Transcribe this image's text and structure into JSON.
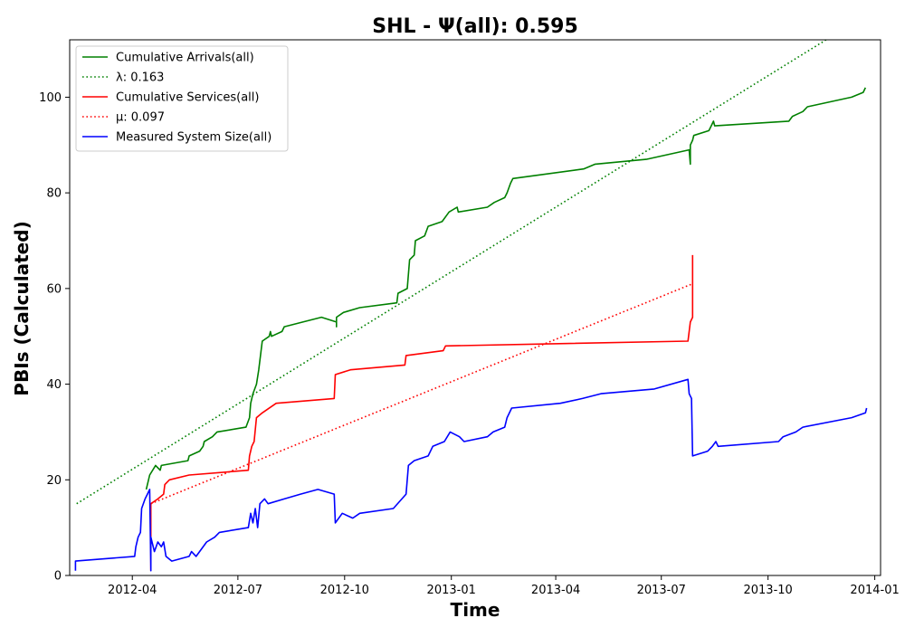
{
  "chart_data": {
    "type": "line",
    "title": "SHL -  Ψ(all): 0.595",
    "xlabel": "Time",
    "ylabel": "PBIs (Calculated)",
    "xlim": [
      "2012-02-07",
      "2014-01-06"
    ],
    "ylim": [
      0,
      112
    ],
    "x_ticks": [
      "2012-04",
      "2012-07",
      "2012-10",
      "2013-01",
      "2013-04",
      "2013-07",
      "2013-10",
      "2014-01"
    ],
    "y_ticks": [
      0,
      20,
      40,
      60,
      80,
      100
    ],
    "grid": false,
    "legend_position": "top-left",
    "series": [
      {
        "name": "Cumulative Arrivals(all)",
        "style": "solid",
        "color": "#008000",
        "points": [
          [
            "2012-04-13",
            18
          ],
          [
            "2012-04-16",
            21
          ],
          [
            "2012-04-21",
            23
          ],
          [
            "2012-04-25",
            22
          ],
          [
            "2012-04-26",
            23
          ],
          [
            "2012-05-19",
            24
          ],
          [
            "2012-05-20",
            25
          ],
          [
            "2012-05-29",
            26
          ],
          [
            "2012-06-01",
            27
          ],
          [
            "2012-06-02",
            28
          ],
          [
            "2012-06-09",
            29
          ],
          [
            "2012-06-13",
            30
          ],
          [
            "2012-07-08",
            31
          ],
          [
            "2012-07-11",
            33
          ],
          [
            "2012-07-12",
            36
          ],
          [
            "2012-07-14",
            38
          ],
          [
            "2012-07-17",
            40
          ],
          [
            "2012-07-19",
            43
          ],
          [
            "2012-07-20",
            45
          ],
          [
            "2012-07-22",
            49
          ],
          [
            "2012-07-28",
            50
          ],
          [
            "2012-07-29",
            51
          ],
          [
            "2012-07-30",
            50
          ],
          [
            "2012-08-08",
            51
          ],
          [
            "2012-08-10",
            52
          ],
          [
            "2012-08-26",
            53
          ],
          [
            "2012-09-11",
            54
          ],
          [
            "2012-09-24",
            53
          ],
          [
            "2012-09-24",
            52
          ],
          [
            "2012-09-24",
            54
          ],
          [
            "2012-09-30",
            55
          ],
          [
            "2012-10-14",
            56
          ],
          [
            "2012-11-15",
            57
          ],
          [
            "2012-11-16",
            59
          ],
          [
            "2012-11-24",
            60
          ],
          [
            "2012-11-26",
            66
          ],
          [
            "2012-11-30",
            67
          ],
          [
            "2012-12-01",
            70
          ],
          [
            "2012-12-09",
            71
          ],
          [
            "2012-12-12",
            73
          ],
          [
            "2012-12-24",
            74
          ],
          [
            "2012-12-30",
            76
          ],
          [
            "2013-01-06",
            77
          ],
          [
            "2013-01-07",
            76
          ],
          [
            "2013-02-01",
            77
          ],
          [
            "2013-02-07",
            78
          ],
          [
            "2013-02-16",
            79
          ],
          [
            "2013-02-18",
            80
          ],
          [
            "2013-02-21",
            82
          ],
          [
            "2013-02-23",
            83
          ],
          [
            "2013-04-25",
            85
          ],
          [
            "2013-05-05",
            86
          ],
          [
            "2013-06-18",
            87
          ],
          [
            "2013-07-25",
            89
          ],
          [
            "2013-07-26",
            86
          ],
          [
            "2013-07-26",
            90
          ],
          [
            "2013-07-28",
            91
          ],
          [
            "2013-07-29",
            92
          ],
          [
            "2013-08-11",
            93
          ],
          [
            "2013-08-13",
            94
          ],
          [
            "2013-08-15",
            95
          ],
          [
            "2013-08-16",
            94
          ],
          [
            "2013-10-19",
            95
          ],
          [
            "2013-10-22",
            96
          ],
          [
            "2013-10-31",
            97
          ],
          [
            "2013-11-04",
            98
          ],
          [
            "2013-12-12",
            100
          ],
          [
            "2013-12-22",
            101
          ],
          [
            "2013-12-24",
            102
          ]
        ]
      },
      {
        "name": "λ: 0.163",
        "style": "dotted",
        "color": "#008000",
        "points": [
          [
            "2012-02-13",
            15
          ],
          [
            "2013-11-20",
            112
          ]
        ]
      },
      {
        "name": "Cumulative Services(all)",
        "style": "solid",
        "color": "#ff0000",
        "points": [
          [
            "2012-04-17",
            1
          ],
          [
            "2012-04-17",
            15
          ],
          [
            "2012-04-23",
            16
          ],
          [
            "2012-04-28",
            17
          ],
          [
            "2012-04-29",
            19
          ],
          [
            "2012-05-03",
            20
          ],
          [
            "2012-05-20",
            21
          ],
          [
            "2012-07-10",
            22
          ],
          [
            "2012-07-11",
            25
          ],
          [
            "2012-07-13",
            27
          ],
          [
            "2012-07-15",
            28
          ],
          [
            "2012-07-17",
            33
          ],
          [
            "2012-07-22",
            34
          ],
          [
            "2012-08-03",
            36
          ],
          [
            "2012-09-22",
            37
          ],
          [
            "2012-09-23",
            42
          ],
          [
            "2012-10-06",
            43
          ],
          [
            "2012-11-22",
            44
          ],
          [
            "2012-11-23",
            46
          ],
          [
            "2012-12-25",
            47
          ],
          [
            "2012-12-27",
            48
          ],
          [
            "2013-07-24",
            49
          ],
          [
            "2013-07-26",
            53
          ],
          [
            "2013-07-28",
            54
          ],
          [
            "2013-07-28",
            67
          ]
        ]
      },
      {
        "name": "μ: 0.097",
        "style": "dotted",
        "color": "#ff0000",
        "points": [
          [
            "2012-04-17",
            15
          ],
          [
            "2013-07-28",
            61
          ]
        ]
      },
      {
        "name": "Measured System Size(all)",
        "style": "solid",
        "color": "#0000ff",
        "points": [
          [
            "2012-02-12",
            1
          ],
          [
            "2012-02-12",
            3
          ],
          [
            "2012-04-03",
            4
          ],
          [
            "2012-04-04",
            6
          ],
          [
            "2012-04-06",
            8
          ],
          [
            "2012-04-08",
            9
          ],
          [
            "2012-04-09",
            14
          ],
          [
            "2012-04-12",
            16
          ],
          [
            "2012-04-14",
            17
          ],
          [
            "2012-04-16",
            18
          ],
          [
            "2012-04-17",
            1
          ],
          [
            "2012-04-17",
            8
          ],
          [
            "2012-04-20",
            5
          ],
          [
            "2012-04-23",
            7
          ],
          [
            "2012-04-26",
            6
          ],
          [
            "2012-04-28",
            7
          ],
          [
            "2012-04-30",
            4
          ],
          [
            "2012-05-05",
            3
          ],
          [
            "2012-05-20",
            4
          ],
          [
            "2012-05-22",
            5
          ],
          [
            "2012-05-26",
            4
          ],
          [
            "2012-06-04",
            7
          ],
          [
            "2012-06-11",
            8
          ],
          [
            "2012-06-15",
            9
          ],
          [
            "2012-07-10",
            10
          ],
          [
            "2012-07-12",
            13
          ],
          [
            "2012-07-14",
            11
          ],
          [
            "2012-07-16",
            14
          ],
          [
            "2012-07-18",
            10
          ],
          [
            "2012-07-20",
            15
          ],
          [
            "2012-07-24",
            16
          ],
          [
            "2012-07-27",
            15
          ],
          [
            "2012-08-10",
            16
          ],
          [
            "2012-08-24",
            17
          ],
          [
            "2012-09-08",
            18
          ],
          [
            "2012-09-22",
            17
          ],
          [
            "2012-09-23",
            11
          ],
          [
            "2012-09-29",
            13
          ],
          [
            "2012-10-08",
            12
          ],
          [
            "2012-10-14",
            13
          ],
          [
            "2012-11-12",
            14
          ],
          [
            "2012-11-23",
            17
          ],
          [
            "2012-11-25",
            23
          ],
          [
            "2012-11-30",
            24
          ],
          [
            "2012-12-12",
            25
          ],
          [
            "2012-12-16",
            27
          ],
          [
            "2012-12-26",
            28
          ],
          [
            "2012-12-31",
            30
          ],
          [
            "2013-01-08",
            29
          ],
          [
            "2013-01-12",
            28
          ],
          [
            "2013-02-01",
            29
          ],
          [
            "2013-02-06",
            30
          ],
          [
            "2013-02-16",
            31
          ],
          [
            "2013-02-18",
            33
          ],
          [
            "2013-02-22",
            35
          ],
          [
            "2013-04-05",
            36
          ],
          [
            "2013-04-24",
            37
          ],
          [
            "2013-05-10",
            38
          ],
          [
            "2013-06-25",
            39
          ],
          [
            "2013-07-24",
            41
          ],
          [
            "2013-07-25",
            38
          ],
          [
            "2013-07-27",
            37
          ],
          [
            "2013-07-28",
            25
          ],
          [
            "2013-08-10",
            26
          ],
          [
            "2013-08-14",
            27
          ],
          [
            "2013-08-17",
            28
          ],
          [
            "2013-08-19",
            27
          ],
          [
            "2013-10-10",
            28
          ],
          [
            "2013-10-14",
            29
          ],
          [
            "2013-10-25",
            30
          ],
          [
            "2013-10-31",
            31
          ],
          [
            "2013-12-12",
            33
          ],
          [
            "2013-12-24",
            34
          ],
          [
            "2013-12-25",
            35
          ]
        ]
      }
    ]
  }
}
